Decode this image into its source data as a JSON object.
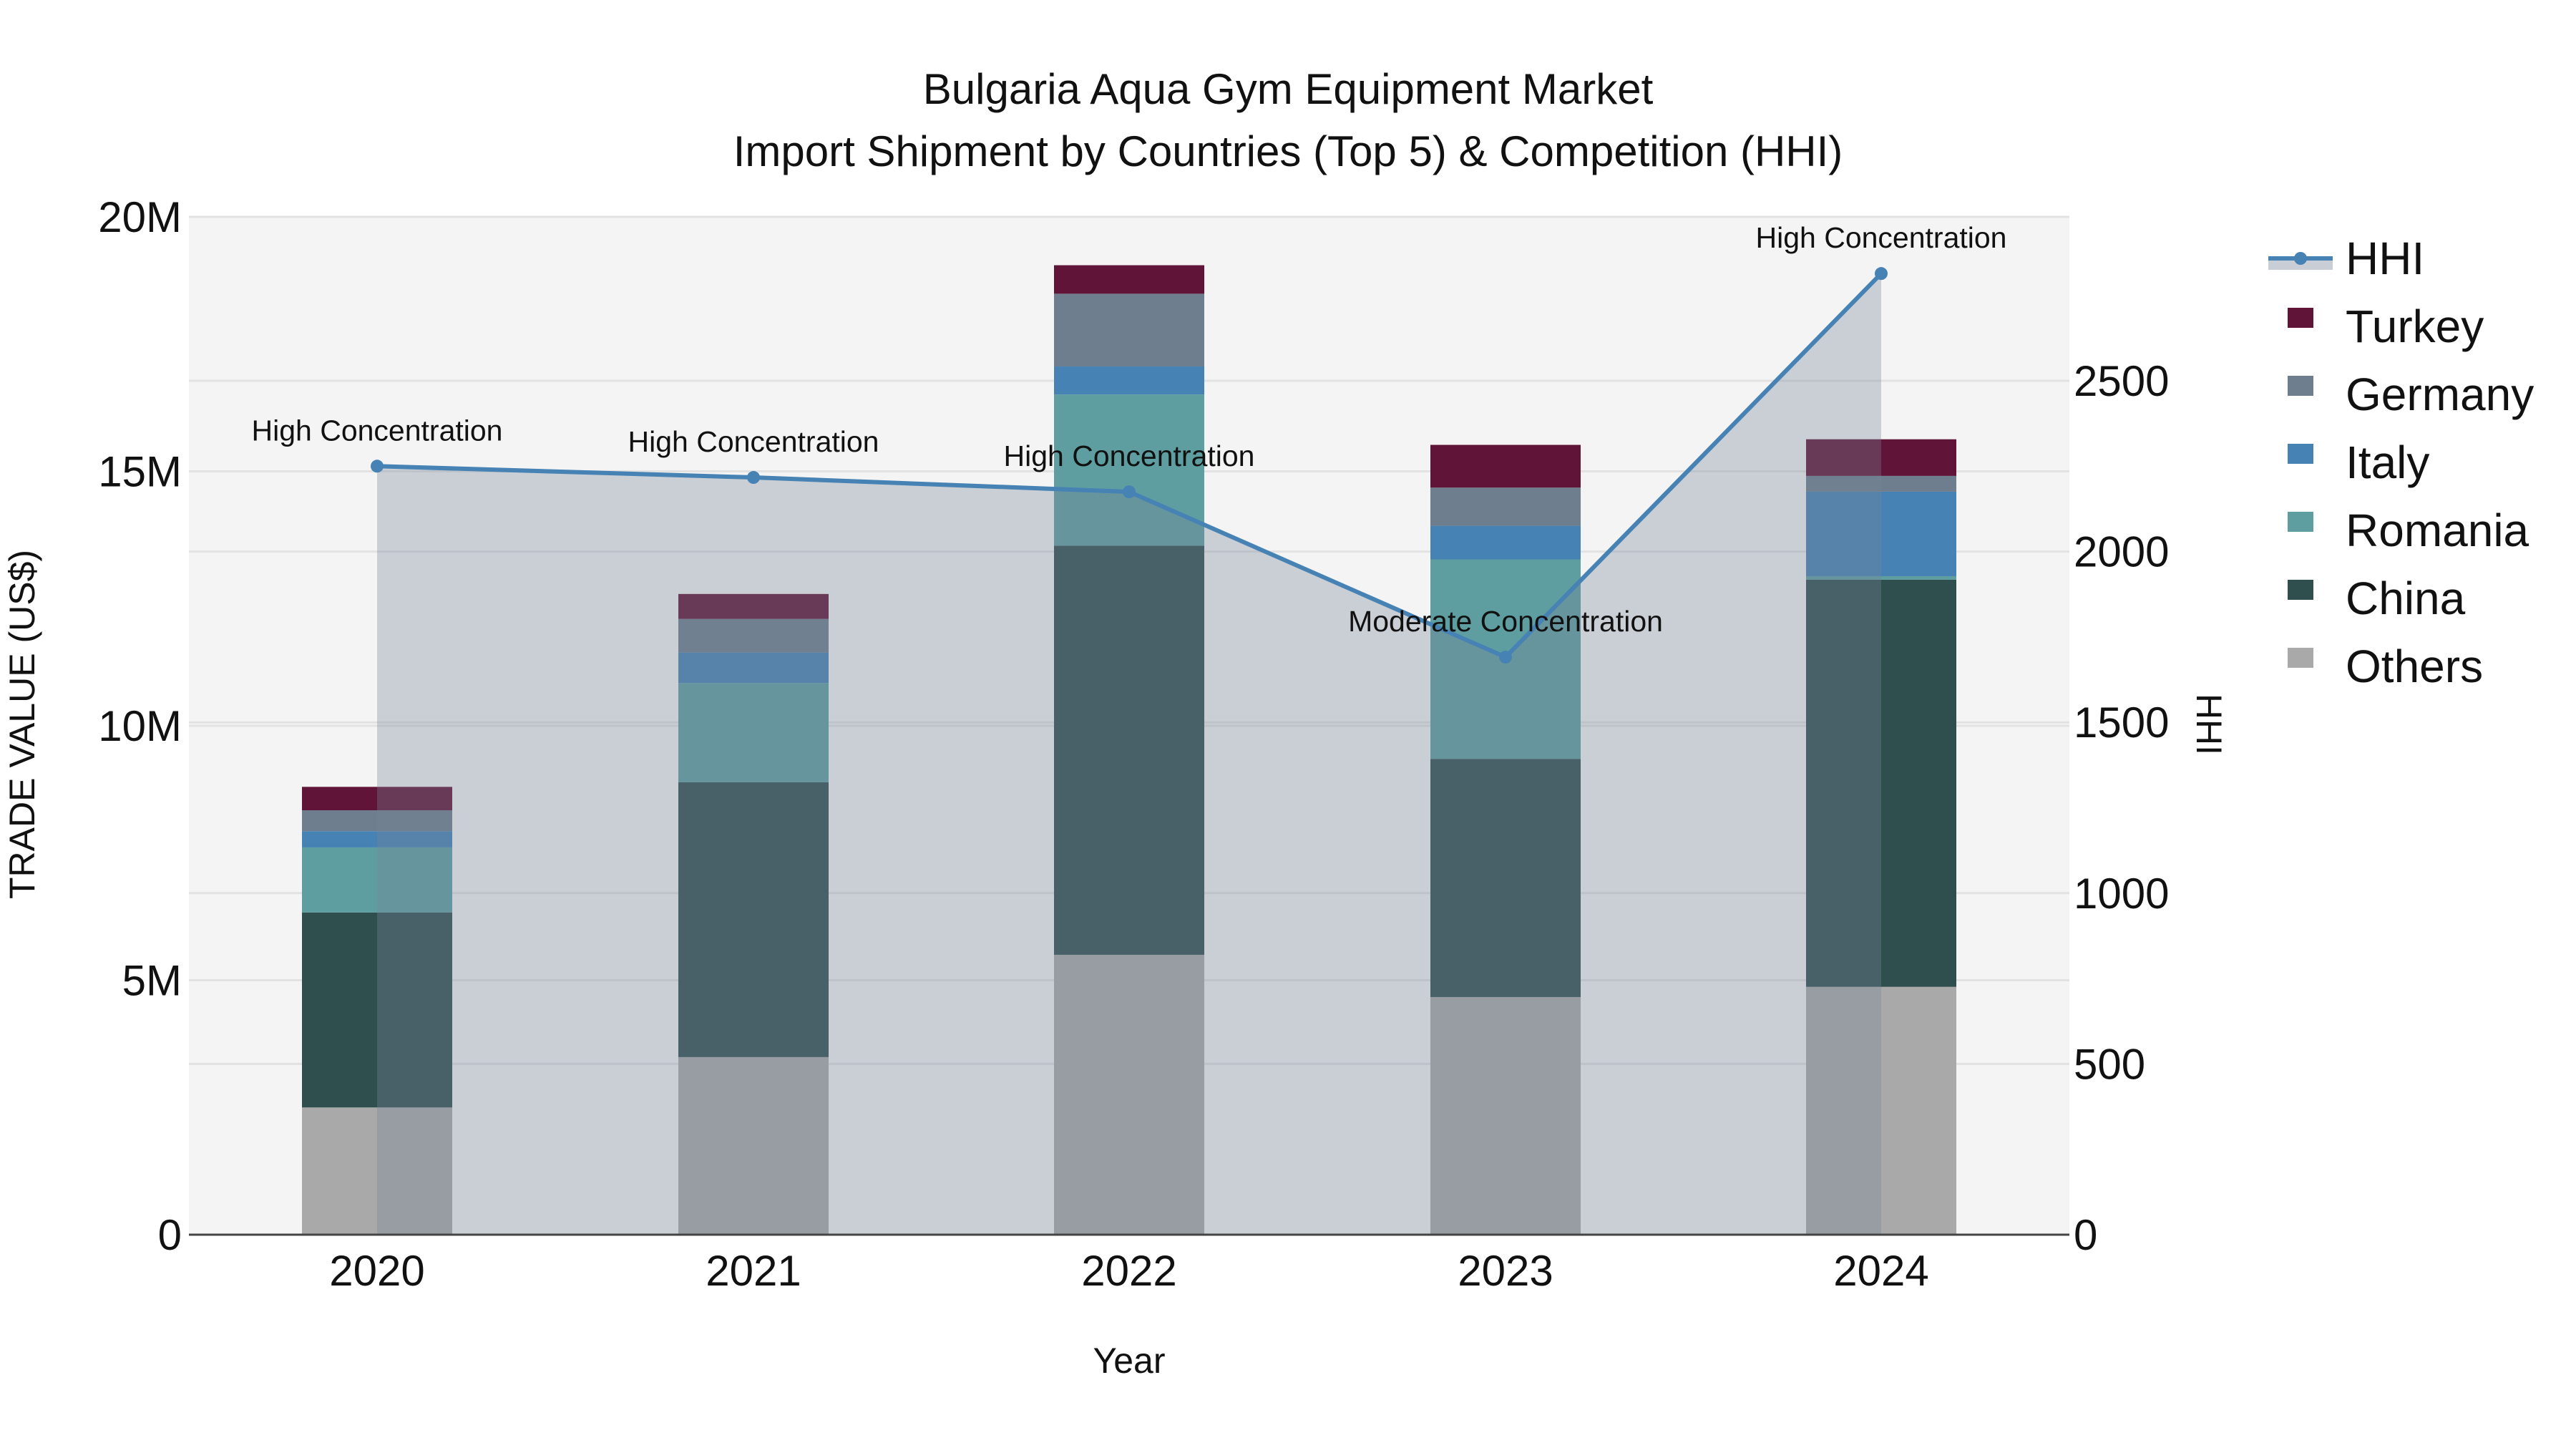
{
  "title": {
    "line1": "Bulgaria Aqua Gym Equipment Market",
    "line2": "Import Shipment by Countries (Top 5) & Competition (HHI)"
  },
  "axes": {
    "x_title": "Year",
    "y_left_title": "TRADE VALUE (US$)",
    "y_right_title": "HHI",
    "y_left_ticks": [
      {
        "value": 0,
        "label": "0"
      },
      {
        "value": 5000000,
        "label": "5M"
      },
      {
        "value": 10000000,
        "label": "10M"
      },
      {
        "value": 15000000,
        "label": "15M"
      },
      {
        "value": 20000000,
        "label": "20M"
      }
    ],
    "y_right_ticks": [
      {
        "value": 0,
        "label": "0"
      },
      {
        "value": 500,
        "label": "500"
      },
      {
        "value": 1000,
        "label": "1000"
      },
      {
        "value": 1500,
        "label": "1500"
      },
      {
        "value": 2000,
        "label": "2000"
      },
      {
        "value": 2500,
        "label": "2500"
      }
    ]
  },
  "legend": [
    {
      "name": "HHI",
      "type": "line",
      "color": "#4682b4",
      "fill": "#c9cdd5"
    },
    {
      "name": "Turkey",
      "type": "bar",
      "color": "#601437"
    },
    {
      "name": "Germany",
      "type": "bar",
      "color": "#6e7e8e"
    },
    {
      "name": "Italy",
      "type": "bar",
      "color": "#4682b4"
    },
    {
      "name": "Romania",
      "type": "bar",
      "color": "#5f9ea0"
    },
    {
      "name": "China",
      "type": "bar",
      "color": "#2f4f4f"
    },
    {
      "name": "Others",
      "type": "bar",
      "color": "#a9a9a9"
    }
  ],
  "colors": {
    "plot_bg": "#f4f4f4",
    "grid": "#e2e2e2",
    "axis_line": "#444444",
    "hhi_line": "#4682b4",
    "hhi_fill": "rgba(119,132,153,0.34)"
  },
  "chart_data": {
    "type": "bar",
    "title": "Bulgaria Aqua Gym Equipment Market — Import Shipment by Countries (Top 5) & Competition (HHI)",
    "xlabel": "Year",
    "ylabel": "TRADE VALUE (US$)",
    "y2label": "HHI",
    "ylim": [
      0,
      20000000
    ],
    "y2lim": [
      0,
      2980
    ],
    "grid": true,
    "legend_position": "right",
    "stacked": true,
    "categories": [
      "2020",
      "2021",
      "2022",
      "2023",
      "2024"
    ],
    "series": [
      {
        "name": "Others",
        "color": "#a9a9a9",
        "values": [
          2500000,
          3490000,
          5500000,
          4670000,
          4870000
        ]
      },
      {
        "name": "China",
        "color": "#2f4f4f",
        "values": [
          3830000,
          5400000,
          8040000,
          4680000,
          8000000
        ]
      },
      {
        "name": "Romania",
        "color": "#5f9ea0",
        "values": [
          1280000,
          1950000,
          2970000,
          3920000,
          70000
        ]
      },
      {
        "name": "Italy",
        "color": "#4682b4",
        "values": [
          320000,
          600000,
          550000,
          660000,
          1660000
        ]
      },
      {
        "name": "Germany",
        "color": "#6e7e8e",
        "values": [
          410000,
          660000,
          1430000,
          750000,
          310000
        ]
      },
      {
        "name": "Turkey",
        "color": "#601437",
        "values": [
          460000,
          490000,
          560000,
          840000,
          720000
        ]
      }
    ],
    "line_series": {
      "name": "HHI",
      "axis": "right",
      "color": "#4682b4",
      "fill": "tozeroy",
      "values": [
        2250,
        2217,
        2175,
        1691,
        2814
      ]
    },
    "annotations": [
      {
        "x": "2020",
        "text": "High Concentration"
      },
      {
        "x": "2021",
        "text": "High Concentration"
      },
      {
        "x": "2022",
        "text": "High Concentration"
      },
      {
        "x": "2023",
        "text": "Moderate Concentration"
      },
      {
        "x": "2024",
        "text": "High Concentration"
      }
    ]
  }
}
